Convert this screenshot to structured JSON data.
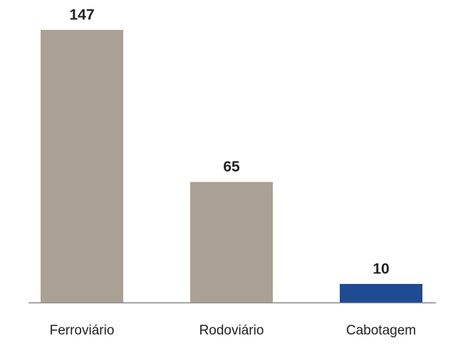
{
  "chart_data": {
    "type": "bar",
    "categories": [
      "Ferroviário",
      "Rodoviário",
      "Cabotagem"
    ],
    "values": [
      147,
      65,
      10
    ],
    "colors": [
      "#aaa194",
      "#aaa194",
      "#1f4b92"
    ]
  }
}
